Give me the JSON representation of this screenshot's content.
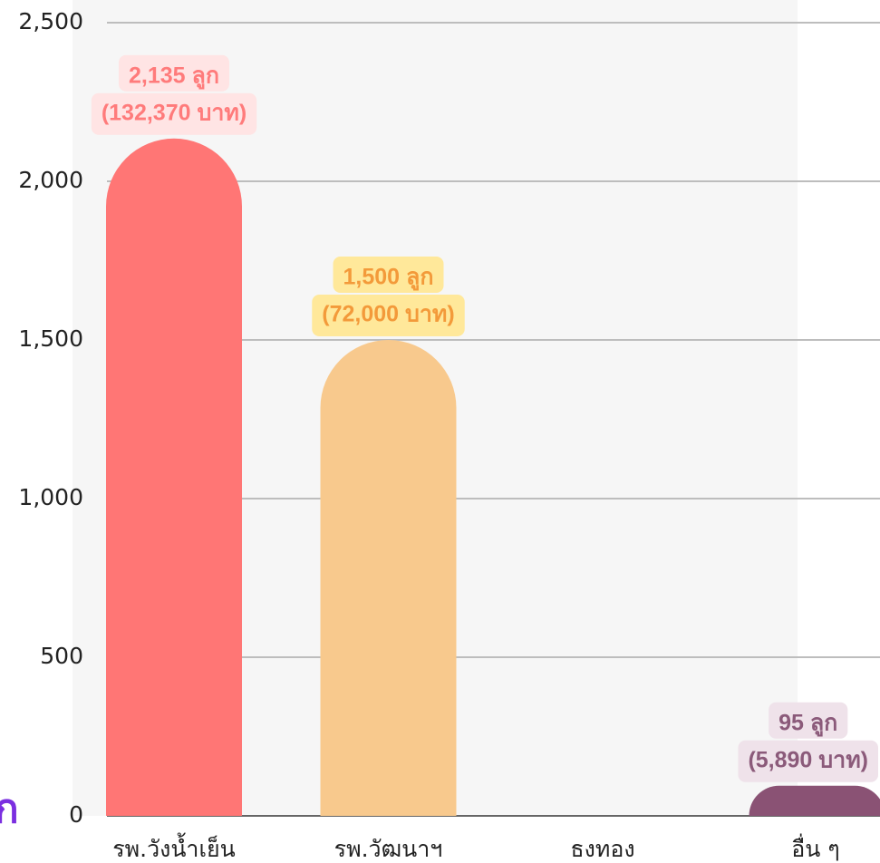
{
  "chart_data": {
    "type": "bar",
    "categories": [
      "รพ.วังน้ำเย็น",
      "รพ.วัฒนาฯ",
      "ธงทอง",
      "อื่น ๆ"
    ],
    "values": [
      2135,
      1500,
      0,
      95
    ],
    "value_labels": [
      "2,135 ลูก",
      "1,500 ลูก",
      null,
      "95 ลูก"
    ],
    "amounts": [
      132370,
      72000,
      null,
      5890
    ],
    "amount_labels": [
      "(132,370 บาท)",
      "(72,000 บาท)",
      null,
      "(5,890 บาท)"
    ],
    "colors": [
      "#ff7675",
      "#f8c98d",
      null,
      "#8a5274"
    ],
    "ylim": [
      0,
      2500
    ],
    "yticks": [
      0,
      {
        "value": 500,
        "label": "500"
      },
      {
        "value": 1000,
        "label": "1,000"
      },
      {
        "value": 1500,
        "label": "1,500"
      },
      {
        "value": 2000,
        "label": "2,000"
      },
      {
        "value": 2500,
        "label": "2,500"
      }
    ],
    "grid": true,
    "fragment_text": "ก"
  }
}
